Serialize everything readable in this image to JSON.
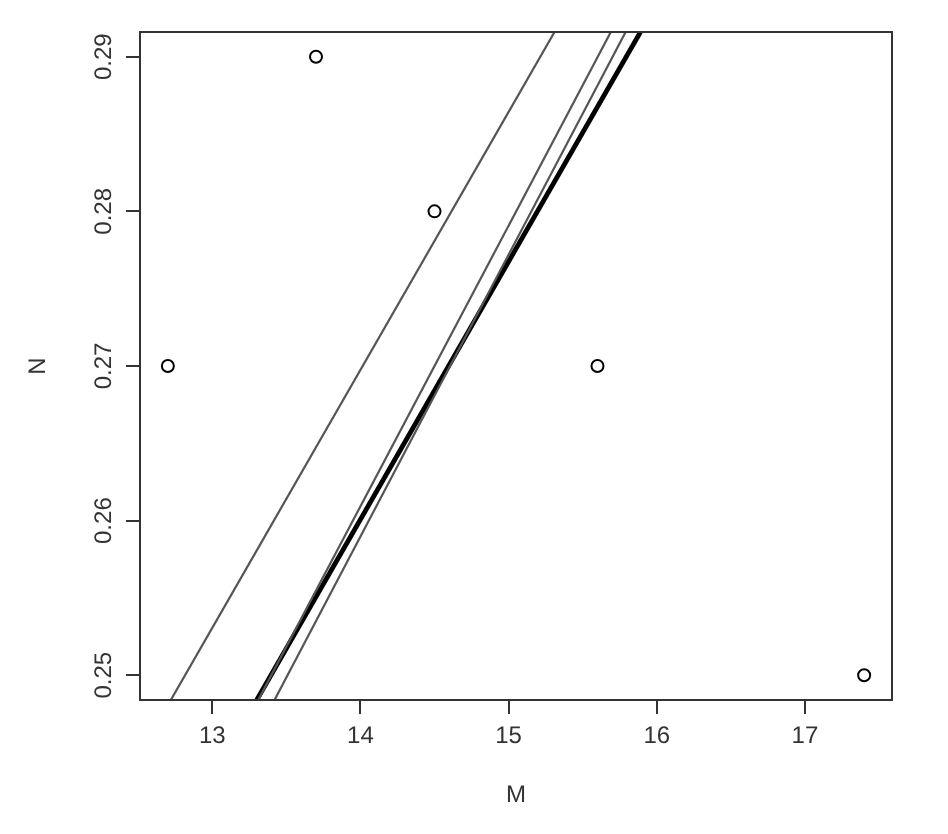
{
  "chart_data": {
    "type": "scatter",
    "xlabel": "M",
    "ylabel": "N",
    "xlim": [
      12.512,
      17.588
    ],
    "ylim": [
      0.2484,
      0.2916
    ],
    "xticks": [
      13,
      14,
      15,
      16,
      17
    ],
    "yticks": [
      0.25,
      0.26,
      0.27,
      0.28,
      0.29
    ],
    "grid": false,
    "legend": false,
    "marker": "circle",
    "x": [
      12.7,
      13.7,
      14.5,
      15.6,
      17.4
    ],
    "series": [
      {
        "color": "#000000",
        "values": [
          0.27,
          0.29,
          0.28,
          0.27,
          0.25
        ]
      },
      {
        "type": "line",
        "color": "#555555",
        "marker": "none",
        "x": [
          12.72,
          15.31
        ],
        "values": [
          0.2484,
          0.2916
        ]
      },
      {
        "type": "line",
        "color": "#555555",
        "marker": "none",
        "x": [
          13.31,
          15.69
        ],
        "values": [
          0.2484,
          0.2916
        ]
      },
      {
        "type": "line",
        "color": "#555555",
        "marker": "none",
        "x": [
          13.42,
          15.79
        ],
        "values": [
          0.2484,
          0.2916
        ]
      },
      {
        "type": "line",
        "color": "#000000",
        "marker": "none",
        "x": [
          13.3,
          15.89
        ],
        "values": [
          0.2484,
          0.2916
        ]
      }
    ]
  }
}
